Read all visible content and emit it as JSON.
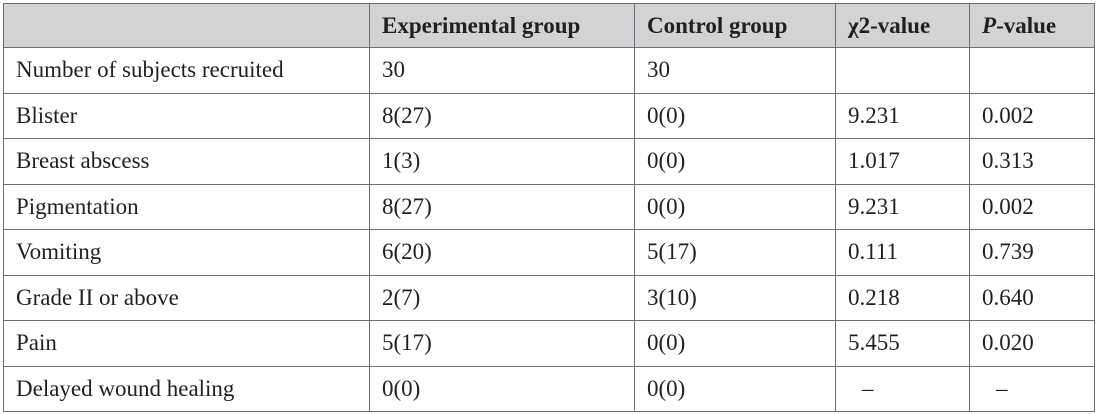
{
  "table": {
    "headers": {
      "col0": "",
      "col1": "Experimental group",
      "col2": "Control group",
      "col3_symbol": "χ",
      "col3_rest": "2-value",
      "col4_italic": "P",
      "col4_rest": "-value"
    },
    "rows": [
      {
        "label": "Number of subjects recruited",
        "exp": "30",
        "ctrl": "30",
        "chi": "",
        "p": ""
      },
      {
        "label": "Blister",
        "exp": "8(27)",
        "ctrl": "0(0)",
        "chi": "9.231",
        "p": "0.002"
      },
      {
        "label": "Breast abscess",
        "exp": "1(3)",
        "ctrl": "0(0)",
        "chi": "1.017",
        "p": "0.313"
      },
      {
        "label": "Pigmentation",
        "exp": "8(27)",
        "ctrl": "0(0)",
        "chi": "9.231",
        "p": "0.002"
      },
      {
        "label": "Vomiting",
        "exp": "6(20)",
        "ctrl": "5(17)",
        "chi": "0.111",
        "p": "0.739"
      },
      {
        "label": "Grade II or above",
        "exp": "2(7)",
        "ctrl": "3(10)",
        "chi": "0.218",
        "p": "0.640"
      },
      {
        "label": "Pain",
        "exp": "5(17)",
        "ctrl": "0(0)",
        "chi": "5.455",
        "p": "0.020"
      },
      {
        "label": "Delayed wound healing",
        "exp": "0(0)",
        "ctrl": "0(0)",
        "chi": "–",
        "p": "–"
      }
    ]
  }
}
